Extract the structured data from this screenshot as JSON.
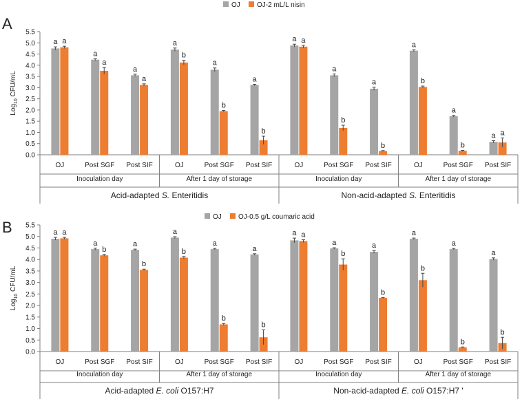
{
  "colors": {
    "oj": "#a5a5a5",
    "treated": "#ed7d31",
    "axis": "#7f7f7f",
    "grid": "#d9d9d9"
  },
  "chart_data": [
    {
      "type": "bar",
      "panel_label": "A",
      "ylabel_main": "Log",
      "ylabel_sub": "10",
      "ylabel_tail": " CFU/mL",
      "ylim": [
        0,
        5.5
      ],
      "yticks": [
        "0.0",
        "0.5",
        "1.0",
        "1.5",
        "2.0",
        "2.5",
        "3.0",
        "3.5",
        "4.0",
        "4.5",
        "5.0",
        "5.5"
      ],
      "grid": false,
      "legend_position": "top-center",
      "categories": [
        "OJ",
        "Post SGF",
        "Post SIF",
        "OJ",
        "Post SGF",
        "Post SIF",
        "OJ",
        "Post SGF",
        "Post SIF",
        "OJ",
        "Post SGF",
        "Post SIF"
      ],
      "series": [
        {
          "name": "OJ",
          "color": "#a5a5a5",
          "values": [
            4.75,
            4.25,
            3.55,
            4.7,
            3.8,
            3.12,
            4.88,
            3.55,
            2.95,
            4.65,
            1.72,
            0.58
          ],
          "errors": [
            0.07,
            0.04,
            0.05,
            0.07,
            0.08,
            0.03,
            0.06,
            0.06,
            0.07,
            0.04,
            0.04,
            0.05
          ],
          "labels": [
            "a",
            "a",
            "a",
            "a",
            "a",
            "a",
            "a",
            "a",
            "a",
            "a",
            "a",
            "a"
          ]
        },
        {
          "name": "OJ-2 mL/L nisin",
          "color": "#ed7d31",
          "values": [
            4.8,
            3.75,
            3.12,
            4.12,
            1.95,
            0.65,
            4.83,
            1.2,
            0.17,
            3.03,
            0.18,
            0.55
          ],
          "errors": [
            0.05,
            0.15,
            0.05,
            0.1,
            0.03,
            0.18,
            0.06,
            0.12,
            0.02,
            0.04,
            0.02,
            0.2
          ],
          "labels": [
            "a",
            "a",
            "a",
            "b",
            "b",
            "b",
            "a",
            "b",
            "b",
            "b",
            "b",
            "a"
          ]
        }
      ],
      "day_groups": [
        "Inoculation day",
        "After 1 day of storage",
        "Inoculation day",
        "After 1 day of storage"
      ],
      "strain_groups": [
        {
          "prefix": "Acid-adapted ",
          "species": "S.",
          "suffix": " Enteritidis"
        },
        {
          "prefix": "Non-acid-adapted ",
          "species": "S.",
          "suffix": " Enteritidis"
        }
      ]
    },
    {
      "type": "bar",
      "panel_label": "B",
      "ylabel_main": "Log",
      "ylabel_sub": "10",
      "ylabel_tail": " CFU/mL",
      "ylim": [
        0,
        5.5
      ],
      "yticks": [
        "0.0",
        "0.5",
        "1.0",
        "1.5",
        "2.0",
        "2.5",
        "3.0",
        "3.5",
        "4.0",
        "4.5",
        "5.0",
        "5.5"
      ],
      "grid": false,
      "legend_position": "top-center",
      "categories": [
        "OJ",
        "Post SGF",
        "Post SIF",
        "OJ",
        "Post SGF",
        "Post SIF",
        "OJ",
        "Post SGF",
        "Post SIF",
        "OJ",
        "Post SGF",
        "Post SIF"
      ],
      "series": [
        {
          "name": "OJ",
          "color": "#a5a5a5",
          "values": [
            4.9,
            4.45,
            4.42,
            4.95,
            4.45,
            4.22,
            4.83,
            4.48,
            4.33,
            4.9,
            4.45,
            4.02
          ],
          "errors": [
            0.06,
            0.04,
            0.03,
            0.04,
            0.03,
            0.03,
            0.1,
            0.03,
            0.06,
            0.03,
            0.03,
            0.05
          ],
          "labels": [
            "a",
            "a",
            "a",
            "a",
            "a",
            "a",
            "a",
            "a",
            "a",
            "a",
            "a",
            "a"
          ]
        },
        {
          "name": "OJ-0.5 g/L coumaric acid",
          "color": "#ed7d31",
          "values": [
            4.92,
            4.18,
            3.55,
            4.08,
            1.18,
            0.62,
            4.8,
            3.78,
            2.33,
            3.1,
            0.18,
            0.37
          ],
          "errors": [
            0.04,
            0.04,
            0.03,
            0.05,
            0.04,
            0.32,
            0.06,
            0.25,
            0.02,
            0.3,
            0.02,
            0.25
          ],
          "labels": [
            "a",
            "b",
            "b",
            "b",
            "b",
            "b",
            "a",
            "b",
            "b",
            "b",
            "b",
            "b"
          ]
        }
      ],
      "day_groups": [
        "Inoculation day",
        "After 1 day of storage",
        "Inoculation day",
        "After 1 day of storage"
      ],
      "strain_groups": [
        {
          "prefix": "Acid-adapted ",
          "species": "E. coli",
          "suffix": " O157:H7"
        },
        {
          "prefix": "Non-acid-adapted ",
          "species": "E. coli",
          "suffix": " O157:H7 '"
        }
      ]
    }
  ]
}
